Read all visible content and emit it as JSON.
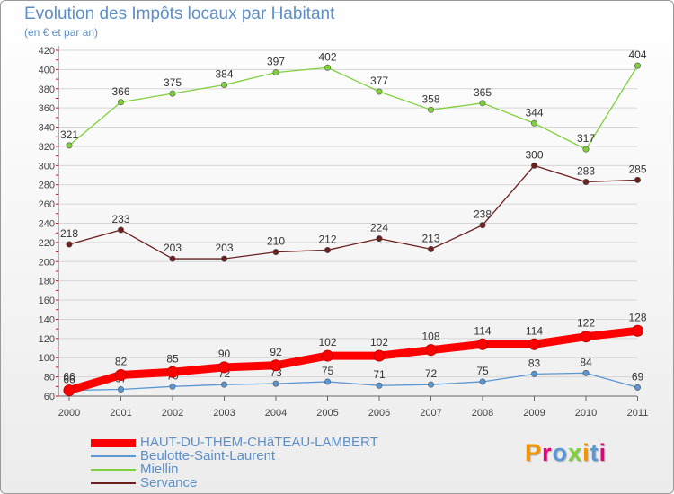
{
  "header": {
    "title": "Evolution des Impôts locaux par Habitant",
    "subtitle": "(en € et par an)"
  },
  "logo": {
    "text": "Proxiti"
  },
  "chart_data": {
    "type": "line",
    "title": "Evolution des Impôts locaux par Habitant",
    "subtitle": "(en € et par an)",
    "xlabel": "",
    "ylabel": "",
    "x": [
      "2000",
      "2001",
      "2002",
      "2003",
      "2004",
      "2005",
      "2006",
      "2007",
      "2008",
      "2009",
      "2010",
      "2011"
    ],
    "ylim": [
      60,
      420
    ],
    "yticks": [
      60,
      80,
      100,
      120,
      140,
      160,
      180,
      200,
      220,
      240,
      260,
      280,
      300,
      320,
      340,
      360,
      380,
      400,
      420
    ],
    "grid": "horizontal",
    "legend_position": "bottom-left",
    "series": [
      {
        "name": "HAUT-DU-THEM-CHâTEAU-LAMBERT",
        "color": "#ff0000",
        "values": [
          66,
          82,
          85,
          90,
          92,
          102,
          102,
          108,
          114,
          114,
          122,
          128
        ]
      },
      {
        "name": "Beulotte-Saint-Laurent",
        "color": "#5b97d2",
        "values": [
          66,
          67,
          70,
          72,
          73,
          75,
          71,
          72,
          75,
          83,
          84,
          69
        ]
      },
      {
        "name": "Miellin",
        "color": "#7fd13b",
        "values": [
          321,
          366,
          375,
          384,
          397,
          402,
          377,
          358,
          365,
          344,
          317,
          404
        ]
      },
      {
        "name": "Servance",
        "color": "#6b1f1f",
        "values": [
          218,
          233,
          203,
          203,
          210,
          212,
          224,
          213,
          238,
          300,
          283,
          285
        ]
      }
    ]
  }
}
